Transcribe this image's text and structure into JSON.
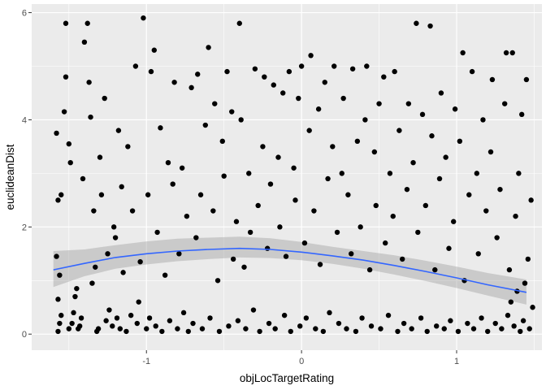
{
  "chart_data": {
    "type": "scatter",
    "title": "",
    "xlabel": "objLocTargetRating",
    "ylabel": "euclideanDist",
    "xlim": [
      -1.74,
      1.55
    ],
    "ylim": [
      -0.3,
      6.16
    ],
    "x_ticks": [
      -1,
      0,
      1
    ],
    "y_ticks": [
      0,
      2,
      4,
      6
    ],
    "x_tick_labels": [
      "-1",
      "0",
      "1"
    ],
    "y_tick_labels": [
      "0",
      "2",
      "4",
      "6"
    ],
    "grid": true,
    "legend": "none",
    "colors": {
      "panel_background": "#ebebeb",
      "grid_major": "#ffffff",
      "points": "#000000",
      "smooth_line": "#3366ff",
      "confidence_band": "#999999"
    },
    "points": [
      {
        "x": -1.57,
        "y": 0.05
      },
      {
        "x": -1.56,
        "y": 0.2
      },
      {
        "x": -1.55,
        "y": 0.35
      },
      {
        "x": -1.57,
        "y": 0.65
      },
      {
        "x": -1.56,
        "y": 1.1
      },
      {
        "x": -1.58,
        "y": 1.45
      },
      {
        "x": -1.57,
        "y": 2.5
      },
      {
        "x": -1.55,
        "y": 2.6
      },
      {
        "x": -1.58,
        "y": 3.75
      },
      {
        "x": -1.53,
        "y": 4.15
      },
      {
        "x": -1.52,
        "y": 4.8
      },
      {
        "x": -1.52,
        "y": 5.8
      },
      {
        "x": -1.5,
        "y": 3.55
      },
      {
        "x": -1.49,
        "y": 3.2
      },
      {
        "x": -1.5,
        "y": 0.1
      },
      {
        "x": -1.48,
        "y": 0.2
      },
      {
        "x": -1.47,
        "y": 0.4
      },
      {
        "x": -1.46,
        "y": 0.7
      },
      {
        "x": -1.45,
        "y": 0.85
      },
      {
        "x": -1.44,
        "y": 0.1
      },
      {
        "x": -1.43,
        "y": 0.15
      },
      {
        "x": -1.42,
        "y": 0.3
      },
      {
        "x": -1.41,
        "y": 2.9
      },
      {
        "x": -1.4,
        "y": 5.45
      },
      {
        "x": -1.38,
        "y": 5.8
      },
      {
        "x": -1.37,
        "y": 4.7
      },
      {
        "x": -1.36,
        "y": 4.05
      },
      {
        "x": -1.35,
        "y": 0.95
      },
      {
        "x": -1.34,
        "y": 2.3
      },
      {
        "x": -1.33,
        "y": 1.25
      },
      {
        "x": -1.32,
        "y": 0.05
      },
      {
        "x": -1.31,
        "y": 0.1
      },
      {
        "x": -1.3,
        "y": 3.3
      },
      {
        "x": -1.29,
        "y": 2.6
      },
      {
        "x": -1.27,
        "y": 4.4
      },
      {
        "x": -1.26,
        "y": 0.25
      },
      {
        "x": -1.25,
        "y": 1.5
      },
      {
        "x": -1.24,
        "y": 0.45
      },
      {
        "x": -1.22,
        "y": 0.15
      },
      {
        "x": -1.21,
        "y": 2.0
      },
      {
        "x": -1.2,
        "y": 1.8
      },
      {
        "x": -1.19,
        "y": 0.3
      },
      {
        "x": -1.18,
        "y": 3.8
      },
      {
        "x": -1.17,
        "y": 0.1
      },
      {
        "x": -1.16,
        "y": 2.75
      },
      {
        "x": -1.15,
        "y": 1.15
      },
      {
        "x": -1.13,
        "y": 0.05
      },
      {
        "x": -1.12,
        "y": 3.5
      },
      {
        "x": -1.1,
        "y": 0.35
      },
      {
        "x": -1.09,
        "y": 2.3
      },
      {
        "x": -1.07,
        "y": 5.0
      },
      {
        "x": -1.06,
        "y": 0.2
      },
      {
        "x": -1.05,
        "y": 0.6
      },
      {
        "x": -1.04,
        "y": 1.35
      },
      {
        "x": -1.02,
        "y": 5.9
      },
      {
        "x": -1.0,
        "y": 0.1
      },
      {
        "x": -0.99,
        "y": 2.6
      },
      {
        "x": -0.98,
        "y": 0.3
      },
      {
        "x": -0.97,
        "y": 4.9
      },
      {
        "x": -0.95,
        "y": 5.3
      },
      {
        "x": -0.94,
        "y": 0.15
      },
      {
        "x": -0.93,
        "y": 1.9
      },
      {
        "x": -0.91,
        "y": 3.85
      },
      {
        "x": -0.9,
        "y": 0.05
      },
      {
        "x": -0.88,
        "y": 1.1
      },
      {
        "x": -0.86,
        "y": 3.2
      },
      {
        "x": -0.85,
        "y": 0.25
      },
      {
        "x": -0.83,
        "y": 2.8
      },
      {
        "x": -0.82,
        "y": 4.7
      },
      {
        "x": -0.8,
        "y": 0.1
      },
      {
        "x": -0.79,
        "y": 1.5
      },
      {
        "x": -0.77,
        "y": 3.1
      },
      {
        "x": -0.76,
        "y": 0.4
      },
      {
        "x": -0.74,
        "y": 2.2
      },
      {
        "x": -0.73,
        "y": 0.05
      },
      {
        "x": -0.71,
        "y": 4.6
      },
      {
        "x": -0.7,
        "y": 0.2
      },
      {
        "x": -0.68,
        "y": 1.8
      },
      {
        "x": -0.67,
        "y": 4.85
      },
      {
        "x": -0.65,
        "y": 2.6
      },
      {
        "x": -0.64,
        "y": 0.1
      },
      {
        "x": -0.62,
        "y": 3.9
      },
      {
        "x": -0.6,
        "y": 5.35
      },
      {
        "x": -0.59,
        "y": 0.3
      },
      {
        "x": -0.57,
        "y": 2.3
      },
      {
        "x": -0.56,
        "y": 4.3
      },
      {
        "x": -0.54,
        "y": 1.0
      },
      {
        "x": -0.53,
        "y": 0.05
      },
      {
        "x": -0.51,
        "y": 3.6
      },
      {
        "x": -0.5,
        "y": 2.95
      },
      {
        "x": -0.48,
        "y": 4.9
      },
      {
        "x": -0.47,
        "y": 0.15
      },
      {
        "x": -0.45,
        "y": 4.15
      },
      {
        "x": -0.44,
        "y": 1.4
      },
      {
        "x": -0.42,
        "y": 2.1
      },
      {
        "x": -0.41,
        "y": 0.25
      },
      {
        "x": -0.4,
        "y": 5.8
      },
      {
        "x": -0.39,
        "y": 4.0
      },
      {
        "x": -0.37,
        "y": 1.25
      },
      {
        "x": -0.36,
        "y": 0.1
      },
      {
        "x": -0.34,
        "y": 3.0
      },
      {
        "x": -0.33,
        "y": 1.9
      },
      {
        "x": -0.31,
        "y": 0.45
      },
      {
        "x": -0.3,
        "y": 4.95
      },
      {
        "x": -0.28,
        "y": 2.4
      },
      {
        "x": -0.27,
        "y": 0.05
      },
      {
        "x": -0.25,
        "y": 3.5
      },
      {
        "x": -0.24,
        "y": 4.8
      },
      {
        "x": -0.22,
        "y": 1.6
      },
      {
        "x": -0.21,
        "y": 0.2
      },
      {
        "x": -0.2,
        "y": 2.8
      },
      {
        "x": -0.18,
        "y": 4.65
      },
      {
        "x": -0.17,
        "y": 0.1
      },
      {
        "x": -0.15,
        "y": 3.3
      },
      {
        "x": -0.14,
        "y": 2.0
      },
      {
        "x": -0.12,
        "y": 4.5
      },
      {
        "x": -0.11,
        "y": 0.35
      },
      {
        "x": -0.1,
        "y": 1.45
      },
      {
        "x": -0.08,
        "y": 4.9
      },
      {
        "x": -0.07,
        "y": 0.05
      },
      {
        "x": -0.05,
        "y": 3.1
      },
      {
        "x": -0.04,
        "y": 2.5
      },
      {
        "x": -0.02,
        "y": 4.4
      },
      {
        "x": -0.01,
        "y": 0.15
      },
      {
        "x": 0.0,
        "y": 5.0
      },
      {
        "x": 0.02,
        "y": 1.7
      },
      {
        "x": 0.03,
        "y": 0.3
      },
      {
        "x": 0.05,
        "y": 3.8
      },
      {
        "x": 0.06,
        "y": 5.2
      },
      {
        "x": 0.08,
        "y": 2.3
      },
      {
        "x": 0.09,
        "y": 0.1
      },
      {
        "x": 0.11,
        "y": 4.2
      },
      {
        "x": 0.12,
        "y": 1.3
      },
      {
        "x": 0.14,
        "y": 0.05
      },
      {
        "x": 0.15,
        "y": 4.7
      },
      {
        "x": 0.17,
        "y": 2.9
      },
      {
        "x": 0.18,
        "y": 0.4
      },
      {
        "x": 0.2,
        "y": 3.5
      },
      {
        "x": 0.21,
        "y": 5.0
      },
      {
        "x": 0.23,
        "y": 1.9
      },
      {
        "x": 0.24,
        "y": 0.2
      },
      {
        "x": 0.26,
        "y": 3.0
      },
      {
        "x": 0.27,
        "y": 4.4
      },
      {
        "x": 0.29,
        "y": 0.1
      },
      {
        "x": 0.3,
        "y": 2.6
      },
      {
        "x": 0.32,
        "y": 1.5
      },
      {
        "x": 0.33,
        "y": 4.95
      },
      {
        "x": 0.35,
        "y": 0.05
      },
      {
        "x": 0.36,
        "y": 3.6
      },
      {
        "x": 0.38,
        "y": 2.0
      },
      {
        "x": 0.39,
        "y": 0.3
      },
      {
        "x": 0.41,
        "y": 4.0
      },
      {
        "x": 0.42,
        "y": 5.0
      },
      {
        "x": 0.44,
        "y": 1.2
      },
      {
        "x": 0.45,
        "y": 0.15
      },
      {
        "x": 0.47,
        "y": 3.4
      },
      {
        "x": 0.48,
        "y": 2.4
      },
      {
        "x": 0.5,
        "y": 4.3
      },
      {
        "x": 0.51,
        "y": 0.1
      },
      {
        "x": 0.53,
        "y": 4.8
      },
      {
        "x": 0.54,
        "y": 1.7
      },
      {
        "x": 0.56,
        "y": 0.35
      },
      {
        "x": 0.57,
        "y": 3.0
      },
      {
        "x": 0.59,
        "y": 2.2
      },
      {
        "x": 0.6,
        "y": 4.9
      },
      {
        "x": 0.62,
        "y": 0.05
      },
      {
        "x": 0.63,
        "y": 3.8
      },
      {
        "x": 0.65,
        "y": 1.4
      },
      {
        "x": 0.66,
        "y": 0.2
      },
      {
        "x": 0.68,
        "y": 2.7
      },
      {
        "x": 0.69,
        "y": 4.3
      },
      {
        "x": 0.71,
        "y": 0.1
      },
      {
        "x": 0.72,
        "y": 3.2
      },
      {
        "x": 0.74,
        "y": 5.8
      },
      {
        "x": 0.75,
        "y": 1.9
      },
      {
        "x": 0.77,
        "y": 0.3
      },
      {
        "x": 0.78,
        "y": 4.1
      },
      {
        "x": 0.8,
        "y": 2.4
      },
      {
        "x": 0.81,
        "y": 0.05
      },
      {
        "x": 0.83,
        "y": 5.75
      },
      {
        "x": 0.84,
        "y": 3.7
      },
      {
        "x": 0.86,
        "y": 1.2
      },
      {
        "x": 0.87,
        "y": 0.15
      },
      {
        "x": 0.89,
        "y": 2.9
      },
      {
        "x": 0.9,
        "y": 4.5
      },
      {
        "x": 0.92,
        "y": 0.1
      },
      {
        "x": 0.93,
        "y": 3.3
      },
      {
        "x": 0.95,
        "y": 1.6
      },
      {
        "x": 0.96,
        "y": 0.25
      },
      {
        "x": 0.98,
        "y": 2.1
      },
      {
        "x": 0.99,
        "y": 4.2
      },
      {
        "x": 1.01,
        "y": 0.05
      },
      {
        "x": 1.02,
        "y": 3.6
      },
      {
        "x": 1.04,
        "y": 5.25
      },
      {
        "x": 1.05,
        "y": 1.0
      },
      {
        "x": 1.07,
        "y": 0.2
      },
      {
        "x": 1.08,
        "y": 2.6
      },
      {
        "x": 1.1,
        "y": 4.9
      },
      {
        "x": 1.11,
        "y": 0.1
      },
      {
        "x": 1.13,
        "y": 3.0
      },
      {
        "x": 1.14,
        "y": 1.5
      },
      {
        "x": 1.16,
        "y": 0.3
      },
      {
        "x": 1.17,
        "y": 4.0
      },
      {
        "x": 1.19,
        "y": 2.3
      },
      {
        "x": 1.2,
        "y": 0.05
      },
      {
        "x": 1.22,
        "y": 3.4
      },
      {
        "x": 1.23,
        "y": 4.75
      },
      {
        "x": 1.25,
        "y": 0.2
      },
      {
        "x": 1.26,
        "y": 1.8
      },
      {
        "x": 1.28,
        "y": 2.7
      },
      {
        "x": 1.29,
        "y": 0.1
      },
      {
        "x": 1.31,
        "y": 4.3
      },
      {
        "x": 1.32,
        "y": 5.25
      },
      {
        "x": 1.33,
        "y": 0.35
      },
      {
        "x": 1.34,
        "y": 1.2
      },
      {
        "x": 1.35,
        "y": 0.6
      },
      {
        "x": 1.36,
        "y": 5.25
      },
      {
        "x": 1.37,
        "y": 0.15
      },
      {
        "x": 1.38,
        "y": 2.2
      },
      {
        "x": 1.39,
        "y": 0.8
      },
      {
        "x": 1.4,
        "y": 3.0
      },
      {
        "x": 1.41,
        "y": 0.05
      },
      {
        "x": 1.42,
        "y": 4.1
      },
      {
        "x": 1.43,
        "y": 0.25
      },
      {
        "x": 1.44,
        "y": 0.95
      },
      {
        "x": 1.45,
        "y": 4.75
      },
      {
        "x": 1.46,
        "y": 1.4
      },
      {
        "x": 1.47,
        "y": 0.1
      },
      {
        "x": 1.48,
        "y": 2.5
      },
      {
        "x": 1.49,
        "y": 0.5
      }
    ],
    "smooth_line": {
      "x": [
        -1.6,
        -1.4,
        -1.2,
        -1.0,
        -0.8,
        -0.6,
        -0.4,
        -0.2,
        0.0,
        0.2,
        0.4,
        0.6,
        0.8,
        1.0,
        1.2,
        1.45
      ],
      "y": [
        1.2,
        1.32,
        1.43,
        1.5,
        1.55,
        1.58,
        1.6,
        1.58,
        1.53,
        1.46,
        1.38,
        1.28,
        1.17,
        1.05,
        0.92,
        0.78
      ],
      "lower": [
        0.88,
        1.08,
        1.22,
        1.3,
        1.36,
        1.4,
        1.43,
        1.42,
        1.38,
        1.31,
        1.22,
        1.11,
        0.99,
        0.86,
        0.72,
        0.55
      ],
      "upper": [
        1.55,
        1.58,
        1.66,
        1.73,
        1.78,
        1.8,
        1.82,
        1.79,
        1.72,
        1.63,
        1.55,
        1.47,
        1.37,
        1.26,
        1.14,
        1.02
      ]
    }
  }
}
